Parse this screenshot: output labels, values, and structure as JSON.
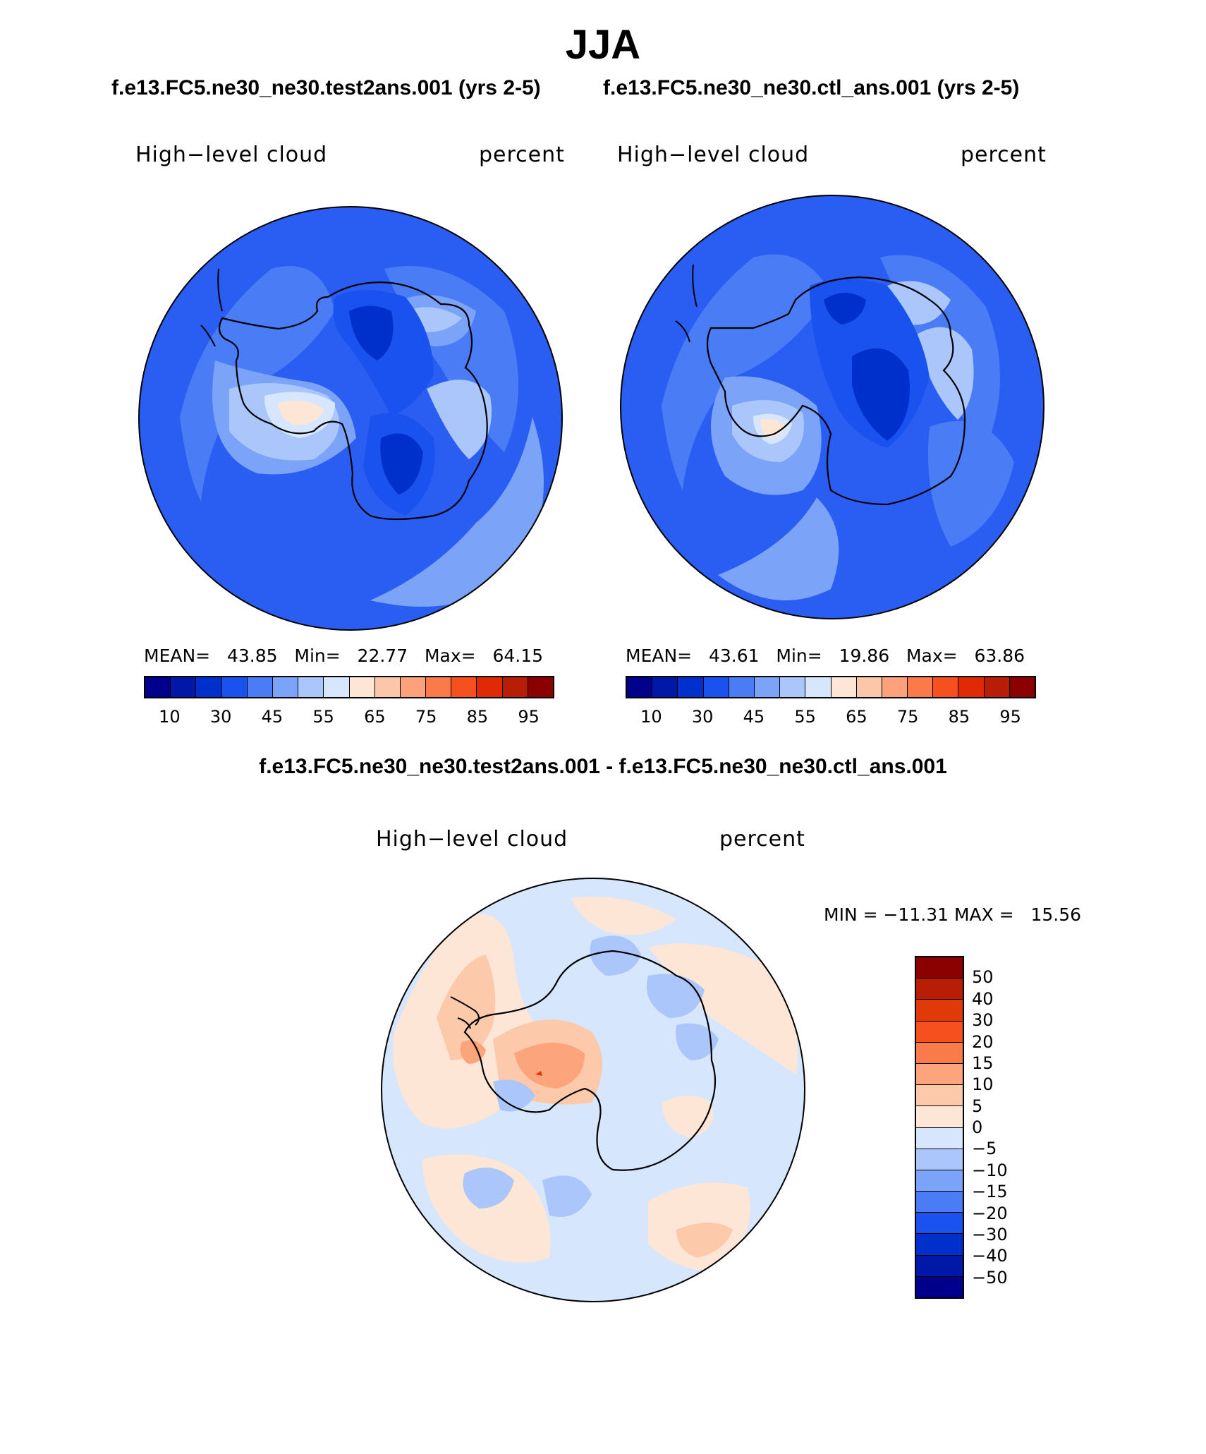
{
  "figure": {
    "title": "JJA",
    "subtitle_left": "f.e13.FC5.ne30_ne30.test2ans.001 (yrs 2-5)",
    "subtitle_right": "f.e13.FC5.ne30_ne30.ctl_ans.001 (yrs 2-5)",
    "diff_title": "f.e13.FC5.ne30_ne30.test2ans.001 - f.e13.FC5.ne30_ne30.ctl_ans.001"
  },
  "panels": [
    {
      "variable": "High−level cloud",
      "units": "percent",
      "mean_label": "MEAN=",
      "mean": "43.85",
      "min_label": "Min=",
      "min": "22.77",
      "max_label": "Max=",
      "max": "64.15"
    },
    {
      "variable": "High−level cloud",
      "units": "percent",
      "mean_label": "MEAN=",
      "mean": "43.61",
      "min_label": "Min=",
      "min": "19.86",
      "max_label": "Max=",
      "max": "63.86"
    }
  ],
  "diff_panel": {
    "variable": "High−level cloud",
    "units": "percent",
    "minmax_text": "MIN = −11.31 MAX =   15.56"
  },
  "colorbar_main": {
    "colors": [
      "#00008c",
      "#0018a8",
      "#0030cc",
      "#1a52f0",
      "#4a7cf5",
      "#7ba3f7",
      "#aac6fa",
      "#d6e6fc",
      "#fde6d6",
      "#fcc7a8",
      "#fca17a",
      "#fb7a4a",
      "#f5501e",
      "#e02a05",
      "#b81d05",
      "#8b0000"
    ],
    "tick_labels": [
      "10",
      "30",
      "45",
      "55",
      "65",
      "75",
      "85",
      "95"
    ]
  },
  "colorbar_diff": {
    "colors": [
      "#8b0000",
      "#b81d05",
      "#e03a08",
      "#f5501e",
      "#fb7a4a",
      "#fca47c",
      "#fcc9aa",
      "#fde6d6",
      "#d6e6fc",
      "#aac6fa",
      "#7ba3f7",
      "#4a7cf5",
      "#1a52f0",
      "#0030cc",
      "#0018a8",
      "#00008c"
    ],
    "tick_labels": [
      "50",
      "40",
      "30",
      "20",
      "15",
      "10",
      "5",
      "0",
      "−5",
      "−10",
      "−15",
      "−20",
      "−30",
      "−40",
      "−50"
    ]
  }
}
